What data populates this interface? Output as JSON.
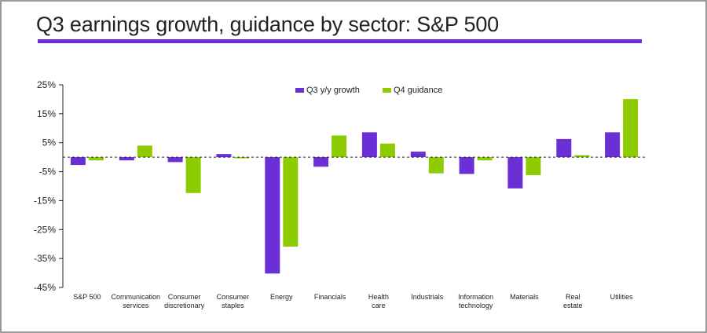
{
  "title": "Q3 earnings growth, guidance by sector: S&P 500",
  "colors": {
    "q3": "#6b2fd6",
    "q4": "#8dcc00",
    "accent_rule": "#6b2fd6",
    "axis": "#222222"
  },
  "chart_data": {
    "type": "bar",
    "title": "Q3 earnings growth, guidance by sector: S&P 500",
    "xlabel": "",
    "ylabel": "",
    "ylim": [
      -45,
      25
    ],
    "yticks": [
      25,
      15,
      5,
      -5,
      -15,
      -25,
      -35,
      -45
    ],
    "ytick_labels": [
      "25%",
      "15%",
      "5%",
      "-5%",
      "-15%",
      "-25%",
      "-35%",
      "-45%"
    ],
    "baseline": 0,
    "legend_position": "top-center",
    "categories": [
      [
        "S&P 500"
      ],
      [
        "Communication",
        "services"
      ],
      [
        "Consumer",
        "discretionary"
      ],
      [
        "Consumer",
        "staples"
      ],
      [
        "Energy"
      ],
      [
        "Financials"
      ],
      [
        "Health",
        "care"
      ],
      [
        "Industrials"
      ],
      [
        "Information",
        "technology"
      ],
      [
        "Materials"
      ],
      [
        "Real",
        "estate"
      ],
      [
        "Utilities"
      ]
    ],
    "series": [
      {
        "name": "Q3 y/y growth",
        "color_key": "q3",
        "values": [
          -2.7,
          -1.1,
          -1.7,
          1.1,
          -40.2,
          -3.3,
          8.6,
          1.9,
          -5.8,
          -10.8,
          6.3,
          8.6
        ]
      },
      {
        "name": "Q4 guidance",
        "color_key": "q4",
        "values": [
          -1.1,
          4.0,
          -12.4,
          -0.4,
          -30.9,
          7.5,
          4.7,
          -5.6,
          -1.1,
          -6.2,
          0.7,
          20.1
        ]
      }
    ]
  }
}
